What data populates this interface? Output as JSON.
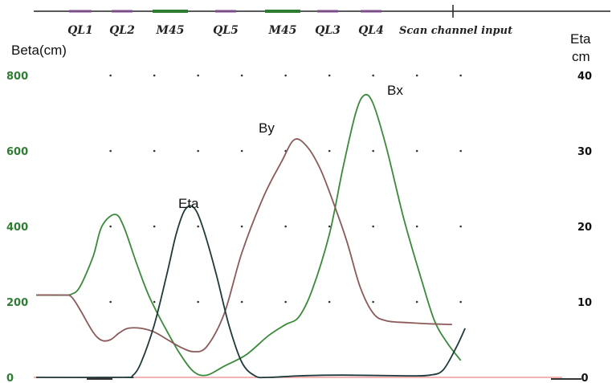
{
  "chart_data": {
    "type": "line",
    "title": "",
    "scan_label": "Scan channel input",
    "beamline_elements": [
      {
        "name": "QL1",
        "color": "#7b4e8a"
      },
      {
        "name": "QL2",
        "color": "#7b4e8a"
      },
      {
        "name": "M45",
        "color": "#2e7d32"
      },
      {
        "name": "QL5",
        "color": "#7b4e8a"
      },
      {
        "name": "M45",
        "color": "#2e7d32"
      },
      {
        "name": "QL3",
        "color": "#7b4e8a"
      },
      {
        "name": "QL4",
        "color": "#7b4e8a"
      }
    ],
    "y_left": {
      "label": "Beta(cm)",
      "ticks": [
        "0",
        "200",
        "400",
        "600",
        "800"
      ],
      "range": [
        0,
        800
      ]
    },
    "y_right": {
      "label_line1": "Eta",
      "label_line2": "cm",
      "ticks": [
        "0",
        "10",
        "20",
        "30",
        "40"
      ],
      "range": [
        0,
        40
      ]
    },
    "x": {
      "range": [
        0,
        100
      ],
      "grid_x": [
        17,
        27,
        37,
        47,
        57,
        67,
        77,
        87,
        97
      ],
      "grid": "dotted"
    },
    "series": [
      {
        "name": "Bx",
        "color": "#3a8a3a",
        "axis": "left",
        "points": [
          [
            0,
            218
          ],
          [
            6,
            218
          ],
          [
            8,
            220
          ],
          [
            10,
            240
          ],
          [
            13,
            320
          ],
          [
            15,
            400
          ],
          [
            18,
            432
          ],
          [
            20,
            400
          ],
          [
            23,
            300
          ],
          [
            26,
            210
          ],
          [
            30,
            120
          ],
          [
            33,
            60
          ],
          [
            36,
            15
          ],
          [
            39,
            6
          ],
          [
            43,
            30
          ],
          [
            48,
            60
          ],
          [
            53,
            110
          ],
          [
            57,
            140
          ],
          [
            60,
            160
          ],
          [
            63,
            230
          ],
          [
            67,
            380
          ],
          [
            70,
            550
          ],
          [
            73,
            700
          ],
          [
            75,
            748
          ],
          [
            77,
            725
          ],
          [
            80,
            610
          ],
          [
            84,
            420
          ],
          [
            88,
            260
          ],
          [
            91,
            150
          ],
          [
            94,
            90
          ],
          [
            97,
            45
          ]
        ]
      },
      {
        "name": "By",
        "color": "#8b5a5a",
        "axis": "left",
        "points": [
          [
            0,
            218
          ],
          [
            6,
            218
          ],
          [
            8,
            214
          ],
          [
            10,
            180
          ],
          [
            13,
            120
          ],
          [
            15,
            98
          ],
          [
            17,
            100
          ],
          [
            19,
            118
          ],
          [
            21,
            130
          ],
          [
            24,
            130
          ],
          [
            27,
            120
          ],
          [
            30,
            100
          ],
          [
            33,
            80
          ],
          [
            36,
            68
          ],
          [
            39,
            82
          ],
          [
            43,
            170
          ],
          [
            47,
            330
          ],
          [
            52,
            480
          ],
          [
            56,
            570
          ],
          [
            59,
            630
          ],
          [
            62,
            610
          ],
          [
            65,
            550
          ],
          [
            68,
            460
          ],
          [
            71,
            360
          ],
          [
            74,
            240
          ],
          [
            77,
            170
          ],
          [
            80,
            150
          ],
          [
            85,
            145
          ],
          [
            90,
            142
          ],
          [
            95,
            140
          ]
        ]
      },
      {
        "name": "Eta",
        "color": "#1f3a3a",
        "axis": "right",
        "points": [
          [
            0,
            0
          ],
          [
            20,
            0
          ],
          [
            22,
            0.2
          ],
          [
            24,
            2
          ],
          [
            27,
            7
          ],
          [
            30,
            14
          ],
          [
            32,
            19
          ],
          [
            34,
            22.2
          ],
          [
            36,
            22.5
          ],
          [
            38,
            20
          ],
          [
            41,
            14
          ],
          [
            44,
            7
          ],
          [
            47,
            2
          ],
          [
            50,
            0.2
          ],
          [
            53,
            0
          ],
          [
            60,
            0.2
          ],
          [
            70,
            0.3
          ],
          [
            85,
            0.2
          ],
          [
            90,
            0.3
          ],
          [
            93,
            1
          ],
          [
            96,
            4
          ],
          [
            98,
            6.5
          ]
        ]
      }
    ],
    "series_labels": [
      "Bx",
      "By",
      "Eta"
    ]
  }
}
